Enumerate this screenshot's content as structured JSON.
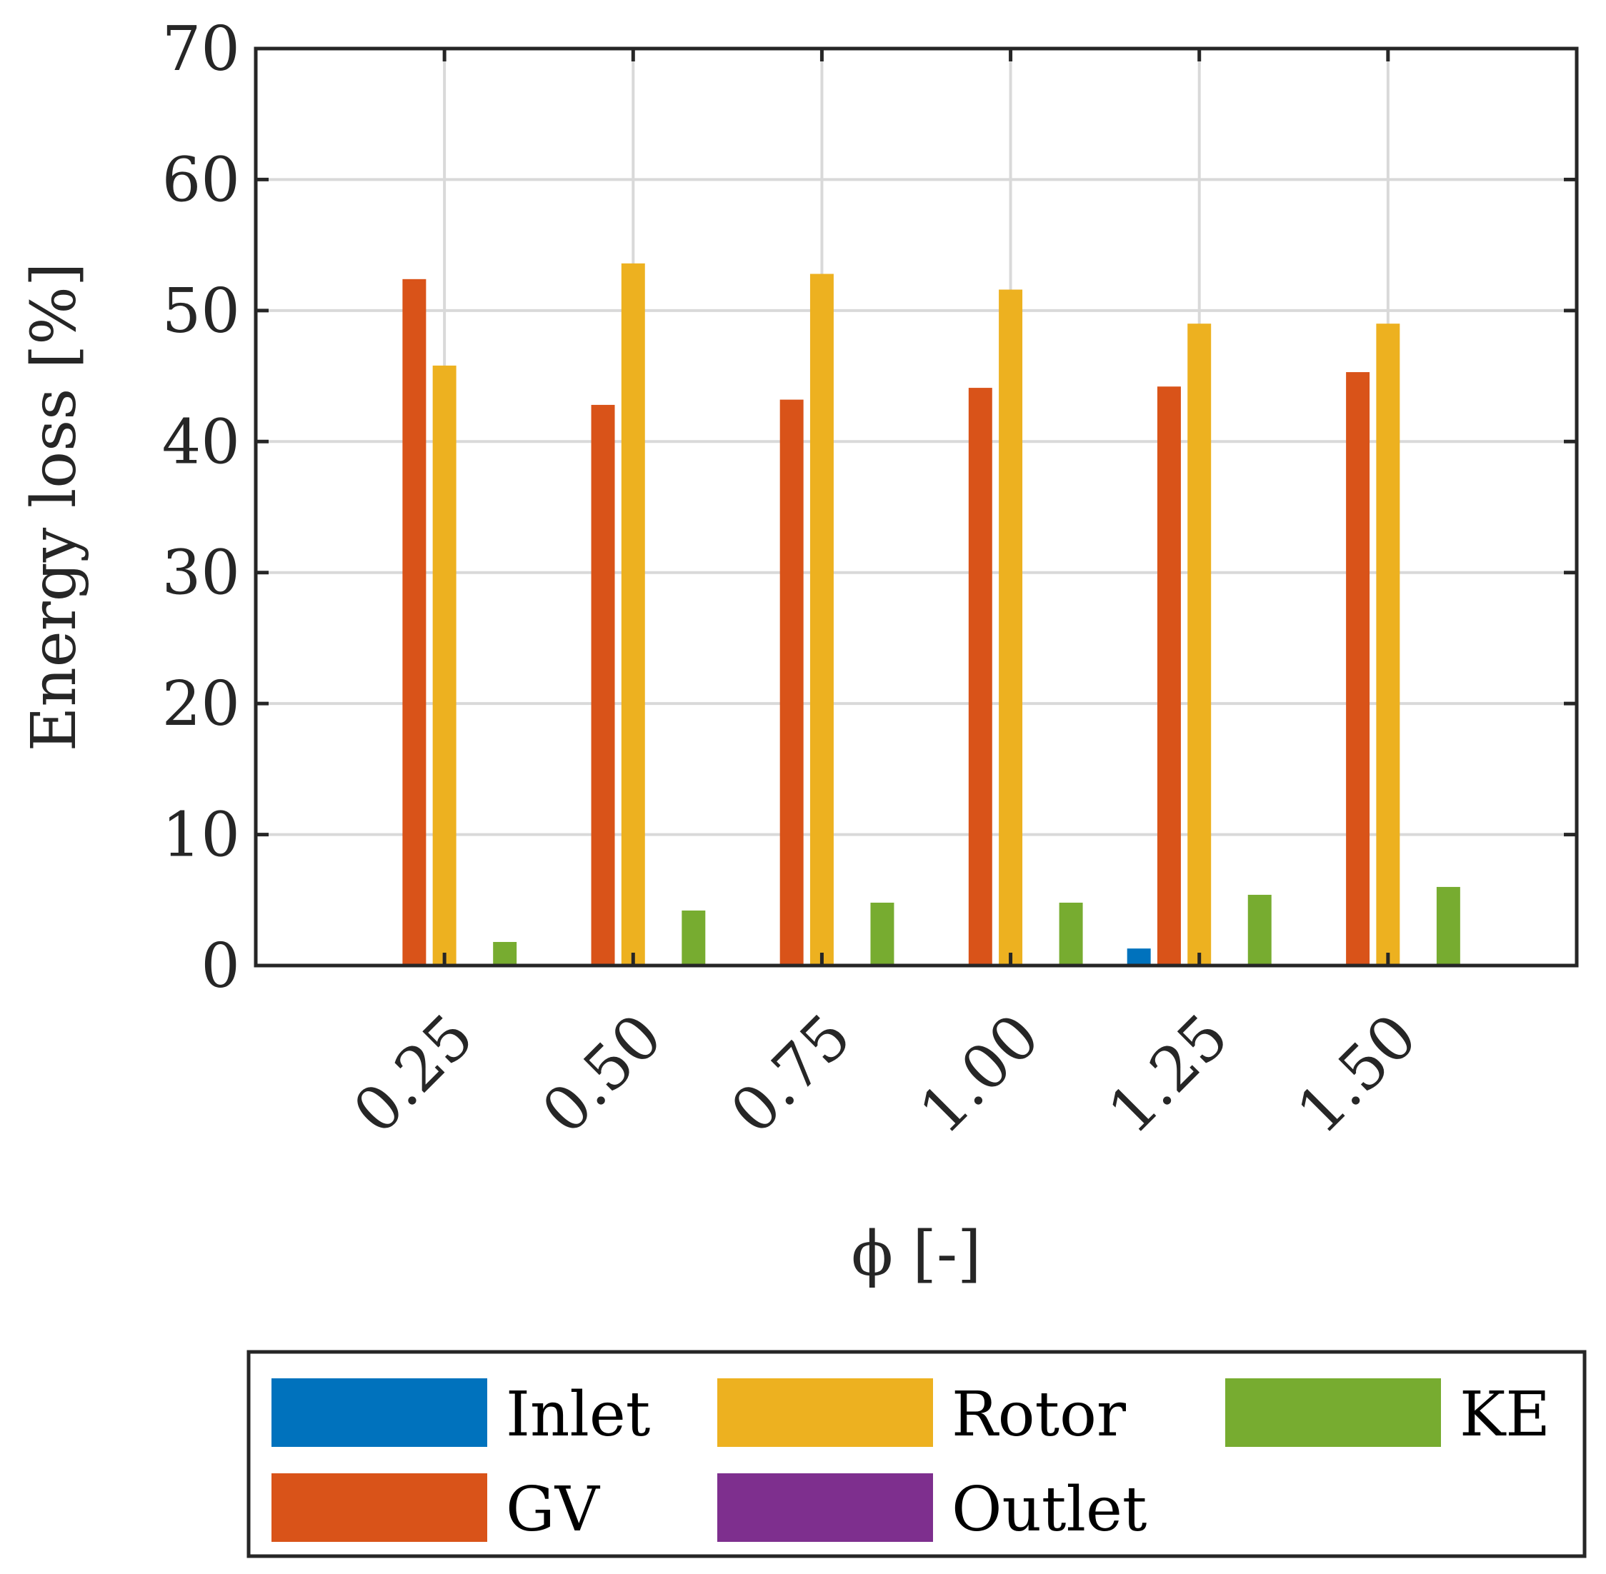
{
  "chart_data": {
    "type": "bar",
    "title": "",
    "xlabel": "ϕ [-]",
    "ylabel": "Energy loss [%]",
    "ylim": [
      0,
      70
    ],
    "yticks": [
      "0",
      "10",
      "20",
      "30",
      "40",
      "50",
      "60",
      "70"
    ],
    "categories": [
      "0.25",
      "0.50",
      "0.75",
      "1.00",
      "1.25",
      "1.50"
    ],
    "grid": true,
    "legend_placement": "below",
    "series": [
      {
        "name": "Inlet",
        "color": "#0072BD",
        "values": [
          0,
          0,
          0,
          0,
          1.3,
          0
        ]
      },
      {
        "name": "GV",
        "color": "#D95319",
        "values": [
          52.4,
          42.8,
          43.2,
          44.1,
          44.2,
          45.3
        ]
      },
      {
        "name": "Rotor",
        "color": "#EDB120",
        "values": [
          45.8,
          53.6,
          52.8,
          51.6,
          49.0,
          49.0
        ]
      },
      {
        "name": "Outlet",
        "color": "#7E2F8E",
        "values": [
          0,
          0,
          0,
          0,
          0,
          0
        ]
      },
      {
        "name": "KE",
        "color": "#77AC30",
        "values": [
          1.8,
          4.2,
          4.8,
          4.8,
          5.4,
          6.0
        ]
      }
    ]
  }
}
